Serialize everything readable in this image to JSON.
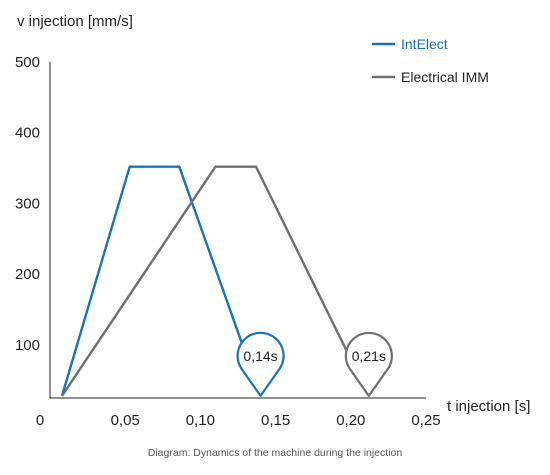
{
  "chart_data": {
    "type": "line",
    "ylabel": "v injection [mm/s]",
    "xlabel": "t injection [s]",
    "caption": "Diagram: Dynamics of the machine during the injection",
    "xlim": [
      0,
      0.25
    ],
    "ylim": [
      25,
      500
    ],
    "x_ticks": [
      {
        "value": 0,
        "label": "0"
      },
      {
        "value": 0.05,
        "label": "0,05"
      },
      {
        "value": 0.1,
        "label": "0,10"
      },
      {
        "value": 0.15,
        "label": "0,15"
      },
      {
        "value": 0.2,
        "label": "0,20"
      },
      {
        "value": 0.25,
        "label": "0,25"
      }
    ],
    "y_ticks": [
      {
        "value": 100,
        "label": "100"
      },
      {
        "value": 200,
        "label": "200"
      },
      {
        "value": 300,
        "label": "300"
      },
      {
        "value": 400,
        "label": "400"
      },
      {
        "value": 500,
        "label": "500"
      }
    ],
    "series": [
      {
        "name": "IntElect",
        "color": "#1a73b8",
        "points": [
          [
            0.008,
            28
          ],
          [
            0.053,
            352
          ],
          [
            0.086,
            352
          ],
          [
            0.14,
            28
          ]
        ],
        "annotation": {
          "label": "0,14s",
          "x": 0.14,
          "y": 28
        }
      },
      {
        "name": "Electrical IMM",
        "color": "#6f6f6f",
        "points": [
          [
            0.008,
            28
          ],
          [
            0.11,
            352
          ],
          [
            0.137,
            352
          ],
          [
            0.212,
            28
          ]
        ],
        "annotation": {
          "label": "0,21s",
          "x": 0.212,
          "y": 28
        }
      }
    ],
    "legend_position": "top-right",
    "grid": false
  }
}
